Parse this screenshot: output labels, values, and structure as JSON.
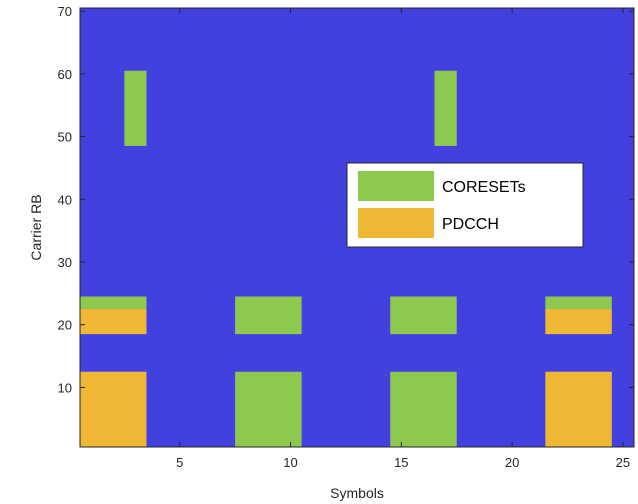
{
  "chart_data": {
    "type": "heatmap",
    "title": "",
    "xlabel": "Symbols",
    "ylabel": "Carrier RB",
    "xlim": [
      0.5,
      25.5
    ],
    "ylim": [
      0.5,
      70.5
    ],
    "xticks": [
      5,
      10,
      15,
      20,
      25
    ],
    "yticks": [
      10,
      20,
      30,
      40,
      50,
      60,
      70
    ],
    "grid": false,
    "background_color": "#4340E0",
    "legend_position": "inside-right",
    "series": [
      {
        "name": "CORESETs",
        "color": "#8DC84F",
        "regions": [
          {
            "x": [
              3,
              3
            ],
            "y": [
              49,
              60
            ]
          },
          {
            "x": [
              17,
              17
            ],
            "y": [
              49,
              60
            ]
          },
          {
            "x": [
              1,
              3
            ],
            "y": [
              23,
              24
            ]
          },
          {
            "x": [
              8,
              10
            ],
            "y": [
              19,
              24
            ]
          },
          {
            "x": [
              15,
              17
            ],
            "y": [
              19,
              24
            ]
          },
          {
            "x": [
              22,
              24
            ],
            "y": [
              23,
              24
            ]
          },
          {
            "x": [
              8,
              10
            ],
            "y": [
              1,
              12
            ]
          },
          {
            "x": [
              15,
              17
            ],
            "y": [
              1,
              12
            ]
          }
        ]
      },
      {
        "name": "PDCCH",
        "color": "#EFB734",
        "regions": [
          {
            "x": [
              1,
              3
            ],
            "y": [
              19,
              22
            ]
          },
          {
            "x": [
              22,
              24
            ],
            "y": [
              19,
              22
            ]
          },
          {
            "x": [
              1,
              3
            ],
            "y": [
              1,
              12
            ]
          },
          {
            "x": [
              22,
              24
            ],
            "y": [
              1,
              12
            ]
          }
        ]
      }
    ]
  }
}
